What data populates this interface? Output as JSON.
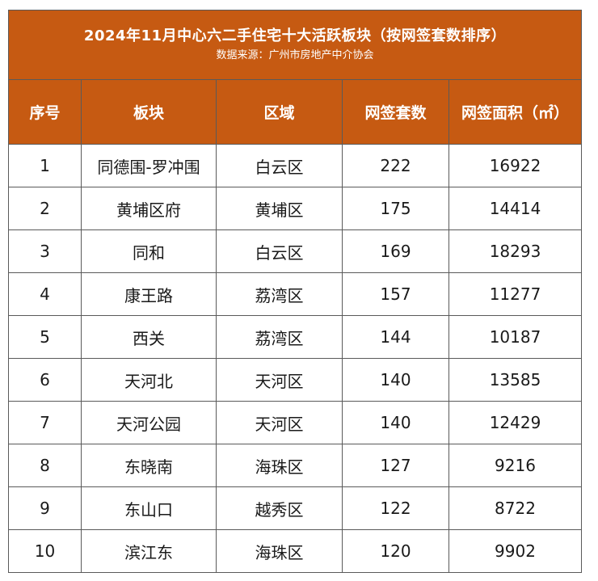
{
  "title": "2024年11月中心六二手住宅十大活跃板块（按网签套数排序）",
  "subtitle": "数据来源：广州市房地产中介协会",
  "colors": {
    "header_bg": "#c65a12",
    "header_text": "#ffffff",
    "border": "#5a5a5a"
  },
  "columns": {
    "rank": "序号",
    "block": "板块",
    "district": "区域",
    "count": "网签套数",
    "area": "网签面积（㎡）"
  },
  "rows": [
    {
      "rank": "1",
      "block": "同德围-罗冲围",
      "district": "白云区",
      "count": "222",
      "area": "16922"
    },
    {
      "rank": "2",
      "block": "黄埔区府",
      "district": "黄埔区",
      "count": "175",
      "area": "14414"
    },
    {
      "rank": "3",
      "block": "同和",
      "district": "白云区",
      "count": "169",
      "area": "18293"
    },
    {
      "rank": "4",
      "block": "康王路",
      "district": "荔湾区",
      "count": "157",
      "area": "11277"
    },
    {
      "rank": "5",
      "block": "西关",
      "district": "荔湾区",
      "count": "144",
      "area": "10187"
    },
    {
      "rank": "6",
      "block": "天河北",
      "district": "天河区",
      "count": "140",
      "area": "13585"
    },
    {
      "rank": "7",
      "block": "天河公园",
      "district": "天河区",
      "count": "140",
      "area": "12429"
    },
    {
      "rank": "8",
      "block": "东晓南",
      "district": "海珠区",
      "count": "127",
      "area": "9216"
    },
    {
      "rank": "9",
      "block": "东山口",
      "district": "越秀区",
      "count": "122",
      "area": "8722"
    },
    {
      "rank": "10",
      "block": "滨江东",
      "district": "海珠区",
      "count": "120",
      "area": "9902"
    }
  ]
}
